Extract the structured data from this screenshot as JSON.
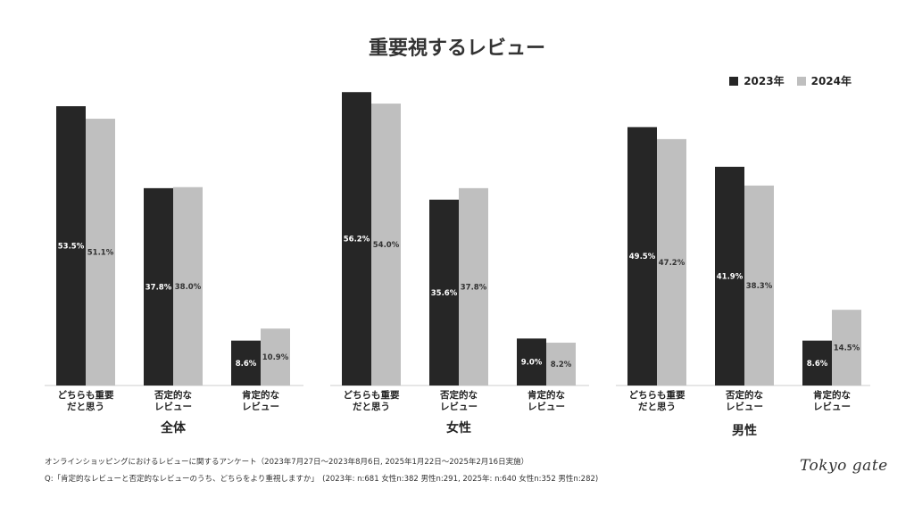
{
  "title": "重要視するレビュー",
  "legend": {
    "items": [
      {
        "label": "2023年",
        "color": "#262626"
      },
      {
        "label": "2024年",
        "color": "#bfbfbf"
      }
    ]
  },
  "chart_data": [
    {
      "type": "bar",
      "panel_title": "全体",
      "categories": [
        [
          "どちらも重要",
          "だと思う"
        ],
        [
          "否定的な",
          "レビュー"
        ],
        [
          "肯定的な",
          "レビュー"
        ]
      ],
      "series": [
        {
          "name": "2023年",
          "values": [
            53.5,
            37.8,
            8.6
          ]
        },
        {
          "name": "2024年",
          "values": [
            51.1,
            38.0,
            10.9
          ]
        }
      ],
      "data_labels": [
        [
          "53.5%",
          "37.8%",
          "8.6%"
        ],
        [
          "51.1%",
          "38.0%",
          "10.9%"
        ]
      ]
    },
    {
      "type": "bar",
      "panel_title": "女性",
      "categories": [
        [
          "どちらも重要",
          "だと思う"
        ],
        [
          "否定的な",
          "レビュー"
        ],
        [
          "肯定的な",
          "レビュー"
        ]
      ],
      "series": [
        {
          "name": "2023年",
          "values": [
            56.2,
            35.6,
            9.0
          ]
        },
        {
          "name": "2024年",
          "values": [
            54.0,
            37.8,
            8.2
          ]
        }
      ],
      "data_labels": [
        [
          "56.2%",
          "35.6%",
          "9.0%"
        ],
        [
          "54.0%",
          "37.8%",
          "8.2%"
        ]
      ]
    },
    {
      "type": "bar",
      "panel_title": "男性",
      "categories": [
        [
          "どちらも重要",
          "だと思う"
        ],
        [
          "否定的な",
          "レビュー"
        ],
        [
          "肯定的な",
          "レビュー"
        ]
      ],
      "series": [
        {
          "name": "2023年",
          "values": [
            49.5,
            41.9,
            8.6
          ]
        },
        {
          "name": "2024年",
          "values": [
            47.2,
            38.3,
            14.5
          ]
        }
      ],
      "data_labels": [
        [
          "49.5%",
          "41.9%",
          "8.6%"
        ],
        [
          "47.2%",
          "38.3%",
          "14.5%"
        ]
      ]
    }
  ],
  "notes": {
    "line1": "オンラインショッピングにおけるレビューに関するアンケート（2023年7月27日〜2023年8月6日, 2025年1月22日〜2025年2月16日実施）",
    "line2": "Q:「肯定的なレビューと否定的なレビューのうち、どちらをより重視しますか」　(2023年: n:681 女性n:382 男性n:291, 2025年: n:640 女性n:352 男性n:282)"
  },
  "logo": "Tokyo gate"
}
